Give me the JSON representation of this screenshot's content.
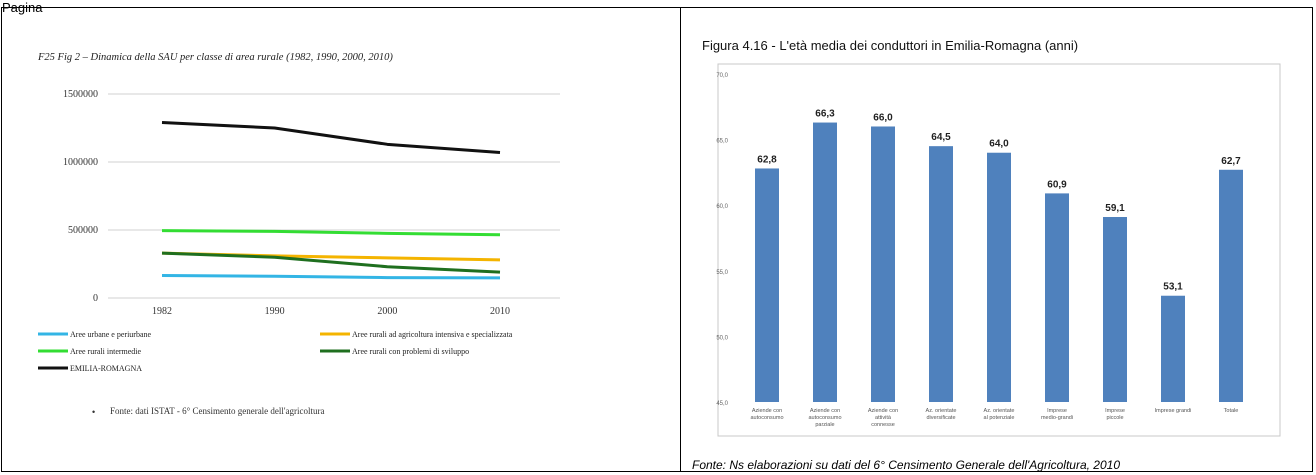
{
  "page": {
    "top_label": "Pagina",
    "left_source": "Fonte: dati ISTAT - 6° Censimento generale dell'agricoltura",
    "right_source": "Fonte: Ns elaborazioni su dati del 6° Censimento Generale dell'Agricoltura, 2010"
  },
  "chart_data": [
    {
      "type": "line",
      "title": "F25  Fig 2 – Dinamica della SAU per classe di area rurale (1982, 1990, 2000, 2010)",
      "xlabel": "",
      "ylabel": "",
      "x": [
        "1982",
        "1990",
        "2000",
        "2010"
      ],
      "ylim": [
        0,
        1500000
      ],
      "yticks": [
        "0",
        "500000",
        "1000000",
        "1500000"
      ],
      "grid": true,
      "legend_position": "bottom",
      "series": [
        {
          "name": "Aree urbane e periurbane",
          "color": "#33b5e5",
          "values": [
            165000,
            160000,
            150000,
            148000
          ]
        },
        {
          "name": "Aree rurali ad agricoltura intensiva e specializzata",
          "color": "#f4b400",
          "values": [
            330000,
            310000,
            295000,
            280000
          ]
        },
        {
          "name": "Aree rurali intermedie",
          "color": "#33dd33",
          "values": [
            495000,
            490000,
            475000,
            465000
          ]
        },
        {
          "name": "Aree rurali con problemi di sviluppo",
          "color": "#1f6f1f",
          "values": [
            330000,
            300000,
            230000,
            190000
          ]
        },
        {
          "name": "EMILIA-ROMAGNA",
          "color": "#111111",
          "values": [
            1290000,
            1250000,
            1130000,
            1070000
          ]
        }
      ]
    },
    {
      "type": "bar",
      "title": "Figura 4.16 - L'età media dei conduttori in Emilia-Romagna (anni)",
      "xlabel": "",
      "ylabel": "",
      "ylim": [
        45,
        70
      ],
      "yticks": [
        "45,0",
        "50,0",
        "55,0",
        "60,0",
        "65,0",
        "70,0"
      ],
      "grid": false,
      "bar_color": "#4f81bd",
      "categories": [
        [
          "Aziende con",
          "autoconsumo"
        ],
        [
          "Aziende con",
          "autoconsumo",
          "parziale"
        ],
        [
          "Aziende con",
          "attività",
          "connesse"
        ],
        [
          "Az. orientate",
          "diversificate"
        ],
        [
          "Az. orientate",
          "al potenziale"
        ],
        [
          "Imprese",
          "medio-grandi"
        ],
        [
          "Imprese",
          "piccole"
        ],
        [
          "Imprese grandi"
        ],
        [
          "Totale"
        ]
      ],
      "values": [
        62.8,
        66.3,
        66.0,
        64.5,
        64.0,
        60.9,
        59.1,
        53.1,
        62.7
      ],
      "value_labels": [
        "62,8",
        "66,3",
        "66,0",
        "64,5",
        "64,0",
        "60,9",
        "59,1",
        "53,1",
        "62,7"
      ]
    }
  ]
}
